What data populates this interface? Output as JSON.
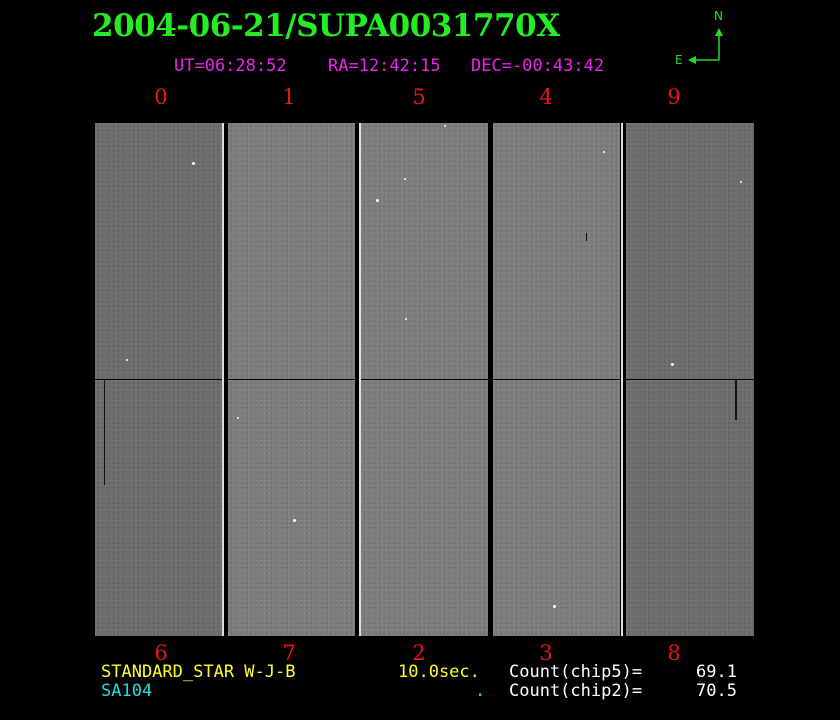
{
  "header": {
    "title": "2004-06-21/SUPA0031770X",
    "ut": "UT=06:28:52",
    "ra": "RA=12:42:15",
    "dec": "DEC=-00:43:42"
  },
  "compass": {
    "north": "N",
    "east": "E"
  },
  "chip_labels": {
    "top": [
      "0",
      "1",
      "5",
      "4",
      "9"
    ],
    "bottom": [
      "6",
      "7",
      "2",
      "3",
      "8"
    ]
  },
  "footer": {
    "target_type": "STANDARD_STAR W-J-B",
    "object": "SA104",
    "exposure": "10.0sec.",
    "dot": ".",
    "count_chip5_label": "Count(chip5)=",
    "count_chip5_value": "69.1",
    "count_chip2_label": "Count(chip2)=",
    "count_chip2_value": "70.5"
  },
  "colors": {
    "title": "#22ee22",
    "coords": "#ee22ee",
    "chip_numbers": "#e81818",
    "target": "#ffff22",
    "object": "#22dddd",
    "counts": "#ffffff"
  }
}
